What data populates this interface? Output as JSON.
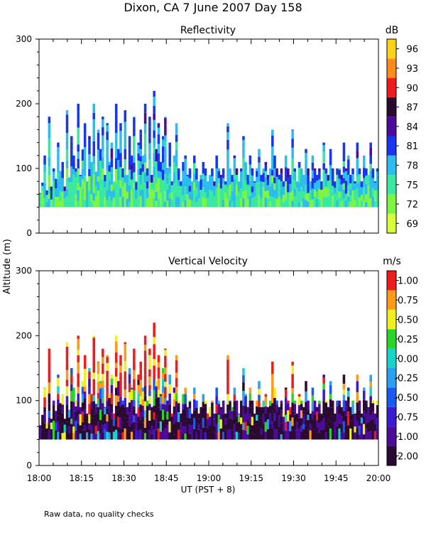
{
  "title": "Dixon, CA   7 June 2007   Day 158",
  "footnote": "Raw data, no quality checks",
  "ylabel": "Altitude (m)",
  "xlabel": "UT   (PST + 8)",
  "x_ticks": [
    "18:00",
    "18:15",
    "18:30",
    "18:45",
    "19:00",
    "19:15",
    "19:30",
    "19:45",
    "20:00"
  ],
  "x_range_minutes": [
    0,
    120
  ],
  "chart_data": [
    {
      "type": "heatmap",
      "title": "Reflectivity",
      "unit": "dB",
      "ylim": [
        0,
        300
      ],
      "y_ticks": [
        "0",
        "100",
        "200",
        "300"
      ],
      "colorbar": {
        "labels": [
          "69",
          "72",
          "75",
          "78",
          "81",
          "84",
          "87",
          "90",
          "93",
          "96"
        ],
        "colors": [
          "#d6ff3a",
          "#7ef542",
          "#3ae8a2",
          "#2cbcf0",
          "#1836f0",
          "#4a0a9c",
          "#2a0a30",
          "#ee1c1c",
          "#ff8c1a",
          "#ffd21a"
        ]
      },
      "base_altitude": 40,
      "echo_tops": [
        62,
        78,
        120,
        66,
        180,
        72,
        100,
        84,
        140,
        96,
        110,
        72,
        190,
        86,
        150,
        120,
        100,
        200,
        90,
        130,
        170,
        80,
        150,
        110,
        200,
        95,
        160,
        130,
        180,
        90,
        170,
        110,
        140,
        80,
        200,
        130,
        170,
        100,
        190,
        90,
        150,
        120,
        180,
        80,
        140,
        160,
        120,
        200,
        100,
        180,
        90,
        220,
        130,
        170,
        110,
        150,
        180,
        100,
        140,
        80,
        120,
        170,
        100,
        80,
        110,
        120,
        90,
        100,
        80,
        120,
        100,
        80,
        90,
        110,
        100,
        80,
        90,
        100,
        80,
        120,
        100,
        90,
        100,
        80,
        170,
        100,
        90,
        120,
        100,
        80,
        100,
        150,
        110,
        90,
        120,
        100,
        80,
        100,
        130,
        90,
        100,
        110,
        90,
        100,
        160,
        120,
        100,
        90,
        100,
        80,
        120,
        100,
        90,
        160,
        100,
        80,
        110,
        100,
        90,
        130,
        100,
        80,
        120,
        100,
        90,
        100,
        80,
        140,
        100,
        90,
        130,
        100,
        80,
        100,
        100,
        90,
        140,
        100,
        120,
        90,
        100,
        80,
        140,
        100,
        80,
        120,
        100,
        90,
        140,
        100,
        80,
        100
      ]
    },
    {
      "type": "heatmap",
      "title": "Vertical Velocity",
      "unit": "m/s",
      "ylim": [
        0,
        300
      ],
      "y_ticks": [
        "0",
        "100",
        "200",
        "300"
      ],
      "colorbar": {
        "labels": [
          "-2.00",
          "-1.00",
          "-0.75",
          "-0.50",
          "-0.25",
          "0.00",
          "0.25",
          "0.50",
          "0.75",
          "1.00"
        ],
        "colors": [
          "#2a0a30",
          "#4a0a9c",
          "#3a1ad2",
          "#1a5af0",
          "#2ca0f0",
          "#18d4c8",
          "#2ad42a",
          "#f0f020",
          "#ff9a1a",
          "#ee1c1c"
        ]
      },
      "base_altitude": 40,
      "echo_tops": [
        62,
        78,
        120,
        66,
        180,
        72,
        100,
        84,
        140,
        96,
        110,
        72,
        190,
        86,
        150,
        120,
        100,
        200,
        90,
        130,
        170,
        80,
        150,
        110,
        200,
        95,
        160,
        130,
        180,
        90,
        170,
        110,
        140,
        80,
        200,
        130,
        170,
        100,
        190,
        90,
        150,
        120,
        180,
        80,
        140,
        160,
        120,
        200,
        100,
        180,
        90,
        220,
        130,
        170,
        110,
        150,
        180,
        100,
        140,
        80,
        120,
        170,
        100,
        80,
        110,
        120,
        90,
        100,
        80,
        120,
        100,
        80,
        90,
        110,
        100,
        80,
        90,
        100,
        80,
        120,
        100,
        90,
        100,
        80,
        170,
        100,
        90,
        120,
        100,
        80,
        100,
        150,
        110,
        90,
        120,
        100,
        80,
        100,
        130,
        90,
        100,
        110,
        90,
        100,
        160,
        120,
        100,
        90,
        100,
        80,
        120,
        100,
        90,
        160,
        100,
        80,
        110,
        100,
        90,
        130,
        100,
        80,
        120,
        100,
        90,
        100,
        80,
        140,
        100,
        90,
        130,
        100,
        80,
        100,
        100,
        90,
        140,
        100,
        120,
        90,
        100,
        80,
        140,
        100,
        80,
        120,
        100,
        90,
        140,
        100,
        80,
        100
      ]
    }
  ]
}
